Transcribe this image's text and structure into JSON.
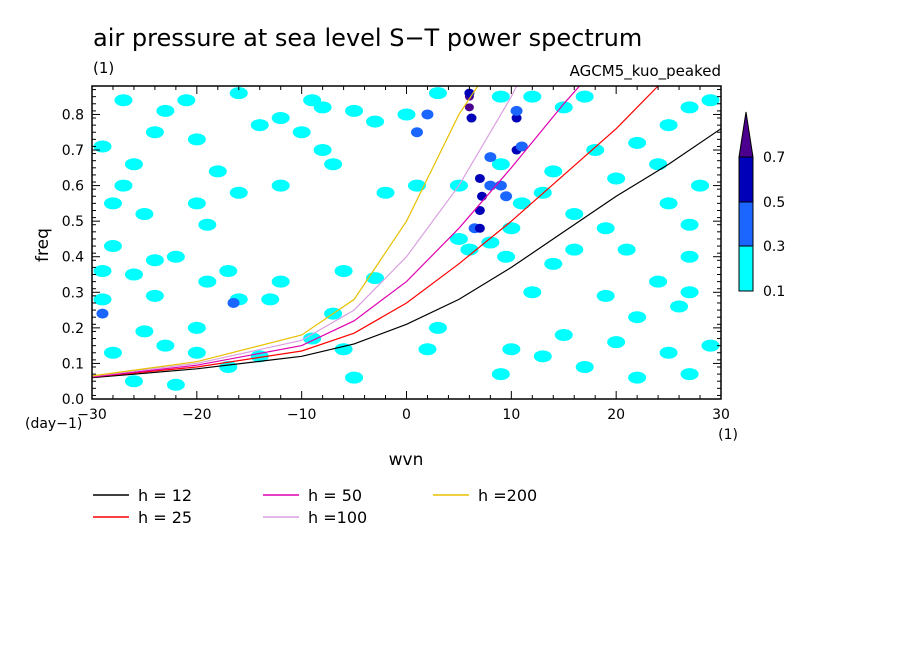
{
  "chart_data": {
    "type": "line",
    "title": "air pressure at sea level S−T power spectrum",
    "units_label": "(1)",
    "model_label": "AGCM5_kuo_peaked",
    "xlabel": "wvn",
    "ylabel": "freq",
    "x_unit_label": "(1)",
    "y_unit_label": "(day−1)",
    "xlim": [
      -30,
      30
    ],
    "ylim": [
      0,
      0.88
    ],
    "x_ticks": [
      -30,
      -20,
      -10,
      0,
      10,
      20,
      30
    ],
    "x_tick_labels": [
      "−30",
      "−20",
      "−10",
      "0",
      "10",
      "20",
      "30"
    ],
    "y_ticks": [
      0,
      0.1,
      0.2,
      0.3,
      0.4,
      0.5,
      0.6,
      0.7,
      0.8
    ],
    "y_tick_labels": [
      "0.0",
      "0.1",
      "0.2",
      "0.3",
      "0.4",
      "0.5",
      "0.6",
      "0.7",
      "0.8"
    ],
    "series": [
      {
        "name": "h = 12",
        "color": "#000000",
        "x": [
          -30,
          -20,
          -10,
          -5,
          0,
          5,
          10,
          15,
          20,
          25,
          30
        ],
        "values": [
          0.06,
          0.085,
          0.12,
          0.155,
          0.21,
          0.28,
          0.37,
          0.47,
          0.57,
          0.66,
          0.76
        ]
      },
      {
        "name": "h = 25",
        "color": "#ff0000",
        "x": [
          -30,
          -20,
          -10,
          -5,
          0,
          5,
          10,
          15,
          20,
          24
        ],
        "values": [
          0.062,
          0.09,
          0.135,
          0.185,
          0.27,
          0.38,
          0.5,
          0.63,
          0.76,
          0.88
        ]
      },
      {
        "name": "h = 50",
        "color": "#e000b0",
        "x": [
          -30,
          -20,
          -10,
          -5,
          0,
          5,
          10,
          15,
          16.5
        ],
        "values": [
          0.062,
          0.095,
          0.15,
          0.22,
          0.33,
          0.48,
          0.65,
          0.83,
          0.88
        ]
      },
      {
        "name": "h =100",
        "color": "#d9a0e0",
        "x": [
          -30,
          -20,
          -10,
          -5,
          0,
          5,
          10,
          10.5
        ],
        "values": [
          0.064,
          0.1,
          0.165,
          0.25,
          0.4,
          0.6,
          0.85,
          0.88
        ]
      },
      {
        "name": "h =200",
        "color": "#e8c000",
        "x": [
          -30,
          -20,
          -10,
          -5,
          0,
          3,
          5,
          6.8
        ],
        "values": [
          0.065,
          0.105,
          0.18,
          0.28,
          0.5,
          0.68,
          0.8,
          0.88
        ]
      }
    ],
    "contours": {
      "levels": [
        0.1,
        0.3,
        0.5,
        0.7
      ],
      "colors": [
        "#00ffff",
        "#1a66ff",
        "#0000b8",
        "#4b0090"
      ],
      "blobs": [
        {
          "x": -29,
          "y": 0.24,
          "level": 1
        },
        {
          "x": -29,
          "y": 0.28,
          "level": 0
        },
        {
          "x": -27,
          "y": 0.84,
          "level": 0
        },
        {
          "x": -23,
          "y": 0.81,
          "level": 0
        },
        {
          "x": -27,
          "y": 0.6,
          "level": 0
        },
        {
          "x": -21,
          "y": 0.84,
          "level": 0
        },
        {
          "x": -24,
          "y": 0.75,
          "level": 0
        },
        {
          "x": -20,
          "y": 0.73,
          "level": 0
        },
        {
          "x": -26,
          "y": 0.66,
          "level": 0
        },
        {
          "x": -28,
          "y": 0.55,
          "level": 0
        },
        {
          "x": -25,
          "y": 0.52,
          "level": 0
        },
        {
          "x": -20,
          "y": 0.55,
          "level": 0
        },
        {
          "x": -19,
          "y": 0.49,
          "level": 0
        },
        {
          "x": -28,
          "y": 0.43,
          "level": 0
        },
        {
          "x": -24,
          "y": 0.39,
          "level": 0
        },
        {
          "x": -22,
          "y": 0.4,
          "level": 0
        },
        {
          "x": -19,
          "y": 0.33,
          "level": 0
        },
        {
          "x": -17,
          "y": 0.36,
          "level": 0
        },
        {
          "x": -16,
          "y": 0.28,
          "level": 0
        },
        {
          "x": -16.5,
          "y": 0.27,
          "level": 1
        },
        {
          "x": -13,
          "y": 0.28,
          "level": 0
        },
        {
          "x": -24,
          "y": 0.29,
          "level": 0
        },
        {
          "x": -20,
          "y": 0.2,
          "level": 0
        },
        {
          "x": -25,
          "y": 0.19,
          "level": 0
        },
        {
          "x": -23,
          "y": 0.15,
          "level": 0
        },
        {
          "x": -20,
          "y": 0.13,
          "level": 0
        },
        {
          "x": -28,
          "y": 0.13,
          "level": 0
        },
        {
          "x": -26,
          "y": 0.05,
          "level": 0
        },
        {
          "x": -22,
          "y": 0.04,
          "level": 0
        },
        {
          "x": -17,
          "y": 0.09,
          "level": 0
        },
        {
          "x": -14,
          "y": 0.12,
          "level": 0
        },
        {
          "x": -12,
          "y": 0.6,
          "level": 0
        },
        {
          "x": -14,
          "y": 0.77,
          "level": 0
        },
        {
          "x": -12,
          "y": 0.79,
          "level": 0
        },
        {
          "x": -9,
          "y": 0.84,
          "level": 0
        },
        {
          "x": -8,
          "y": 0.82,
          "level": 0
        },
        {
          "x": -5,
          "y": 0.81,
          "level": 0
        },
        {
          "x": -8,
          "y": 0.7,
          "level": 0
        },
        {
          "x": -7,
          "y": 0.66,
          "level": 0
        },
        {
          "x": -10,
          "y": 0.75,
          "level": 0
        },
        {
          "x": -2,
          "y": 0.58,
          "level": 0
        },
        {
          "x": -3,
          "y": 0.78,
          "level": 0
        },
        {
          "x": 0,
          "y": 0.8,
          "level": 0
        },
        {
          "x": 1,
          "y": 0.6,
          "level": 0
        },
        {
          "x": 2,
          "y": 0.8,
          "level": 1
        },
        {
          "x": 1,
          "y": 0.75,
          "level": 1
        },
        {
          "x": 3,
          "y": 0.86,
          "level": 0
        },
        {
          "x": -12,
          "y": 0.33,
          "level": 0
        },
        {
          "x": -9,
          "y": 0.17,
          "level": 0
        },
        {
          "x": -7,
          "y": 0.24,
          "level": 0
        },
        {
          "x": -6,
          "y": 0.14,
          "level": 0
        },
        {
          "x": -5,
          "y": 0.06,
          "level": 0
        },
        {
          "x": 2,
          "y": 0.14,
          "level": 0
        },
        {
          "x": 3,
          "y": 0.2,
          "level": 0
        },
        {
          "x": -3,
          "y": 0.34,
          "level": 0
        },
        {
          "x": -6,
          "y": 0.36,
          "level": 0
        },
        {
          "x": 6,
          "y": 0.85,
          "level": 3
        },
        {
          "x": 6,
          "y": 0.82,
          "level": 3
        },
        {
          "x": 6,
          "y": 0.86,
          "level": 2
        },
        {
          "x": 6.2,
          "y": 0.79,
          "level": 2
        },
        {
          "x": 10.5,
          "y": 0.79,
          "level": 2
        },
        {
          "x": 10.5,
          "y": 0.81,
          "level": 1
        },
        {
          "x": 10.5,
          "y": 0.7,
          "level": 2
        },
        {
          "x": 11,
          "y": 0.71,
          "level": 1
        },
        {
          "x": 12,
          "y": 0.85,
          "level": 0
        },
        {
          "x": 9,
          "y": 0.85,
          "level": 0
        },
        {
          "x": 7,
          "y": 0.62,
          "level": 2
        },
        {
          "x": 7.2,
          "y": 0.57,
          "level": 2
        },
        {
          "x": 7,
          "y": 0.53,
          "level": 2
        },
        {
          "x": 8,
          "y": 0.6,
          "level": 1
        },
        {
          "x": 9,
          "y": 0.6,
          "level": 1
        },
        {
          "x": 9.5,
          "y": 0.57,
          "level": 1
        },
        {
          "x": 9,
          "y": 0.66,
          "level": 0
        },
        {
          "x": 8,
          "y": 0.68,
          "level": 1
        },
        {
          "x": 6.5,
          "y": 0.48,
          "level": 1
        },
        {
          "x": 5,
          "y": 0.45,
          "level": 0
        },
        {
          "x": 7,
          "y": 0.48,
          "level": 2
        },
        {
          "x": 6,
          "y": 0.42,
          "level": 0
        },
        {
          "x": 8,
          "y": 0.44,
          "level": 0
        },
        {
          "x": 10,
          "y": 0.48,
          "level": 0
        },
        {
          "x": 11,
          "y": 0.55,
          "level": 0
        },
        {
          "x": 5,
          "y": 0.6,
          "level": 0
        },
        {
          "x": 9.5,
          "y": 0.4,
          "level": 0
        },
        {
          "x": 15,
          "y": 0.82,
          "level": 0
        },
        {
          "x": 17,
          "y": 0.85,
          "level": 0
        },
        {
          "x": 18,
          "y": 0.7,
          "level": 0
        },
        {
          "x": 14,
          "y": 0.64,
          "level": 0
        },
        {
          "x": 13,
          "y": 0.58,
          "level": 0
        },
        {
          "x": 16,
          "y": 0.52,
          "level": 0
        },
        {
          "x": 20,
          "y": 0.62,
          "level": 0
        },
        {
          "x": 22,
          "y": 0.72,
          "level": 0
        },
        {
          "x": 25,
          "y": 0.77,
          "level": 0
        },
        {
          "x": 27,
          "y": 0.82,
          "level": 0
        },
        {
          "x": 29,
          "y": 0.84,
          "level": 0
        },
        {
          "x": 24,
          "y": 0.66,
          "level": 0
        },
        {
          "x": 28,
          "y": 0.6,
          "level": 0
        },
        {
          "x": 25,
          "y": 0.55,
          "level": 0
        },
        {
          "x": 27,
          "y": 0.49,
          "level": 0
        },
        {
          "x": 19,
          "y": 0.48,
          "level": 0
        },
        {
          "x": 21,
          "y": 0.42,
          "level": 0
        },
        {
          "x": 27,
          "y": 0.4,
          "level": 0
        },
        {
          "x": 24,
          "y": 0.33,
          "level": 0
        },
        {
          "x": 19,
          "y": 0.29,
          "level": 0
        },
        {
          "x": 26,
          "y": 0.26,
          "level": 0
        },
        {
          "x": 22,
          "y": 0.23,
          "level": 0
        },
        {
          "x": 20,
          "y": 0.16,
          "level": 0
        },
        {
          "x": 15,
          "y": 0.18,
          "level": 0
        },
        {
          "x": 13,
          "y": 0.12,
          "level": 0
        },
        {
          "x": 10,
          "y": 0.14,
          "level": 0
        },
        {
          "x": 9,
          "y": 0.07,
          "level": 0
        },
        {
          "x": 17,
          "y": 0.09,
          "level": 0
        },
        {
          "x": 22,
          "y": 0.06,
          "level": 0
        },
        {
          "x": 27,
          "y": 0.07,
          "level": 0
        },
        {
          "x": 29,
          "y": 0.15,
          "level": 0
        },
        {
          "x": 25,
          "y": 0.13,
          "level": 0
        },
        {
          "x": 27,
          "y": 0.3,
          "level": 0
        },
        {
          "x": 14,
          "y": 0.38,
          "level": 0
        },
        {
          "x": 12,
          "y": 0.3,
          "level": 0
        },
        {
          "x": 16,
          "y": 0.42,
          "level": 0
        },
        {
          "x": -29,
          "y": 0.36,
          "level": 0
        },
        {
          "x": -26,
          "y": 0.35,
          "level": 0
        },
        {
          "x": -29,
          "y": 0.71,
          "level": 0
        },
        {
          "x": -18,
          "y": 0.64,
          "level": 0
        },
        {
          "x": -16,
          "y": 0.86,
          "level": 0
        },
        {
          "x": -16,
          "y": 0.58,
          "level": 0
        }
      ]
    },
    "colorbar": {
      "labels": [
        "0.1",
        "0.3",
        "0.5",
        "0.7"
      ],
      "colors": [
        "#00ffff",
        "#1a66ff",
        "#0000b8",
        "#4b0090"
      ]
    }
  }
}
